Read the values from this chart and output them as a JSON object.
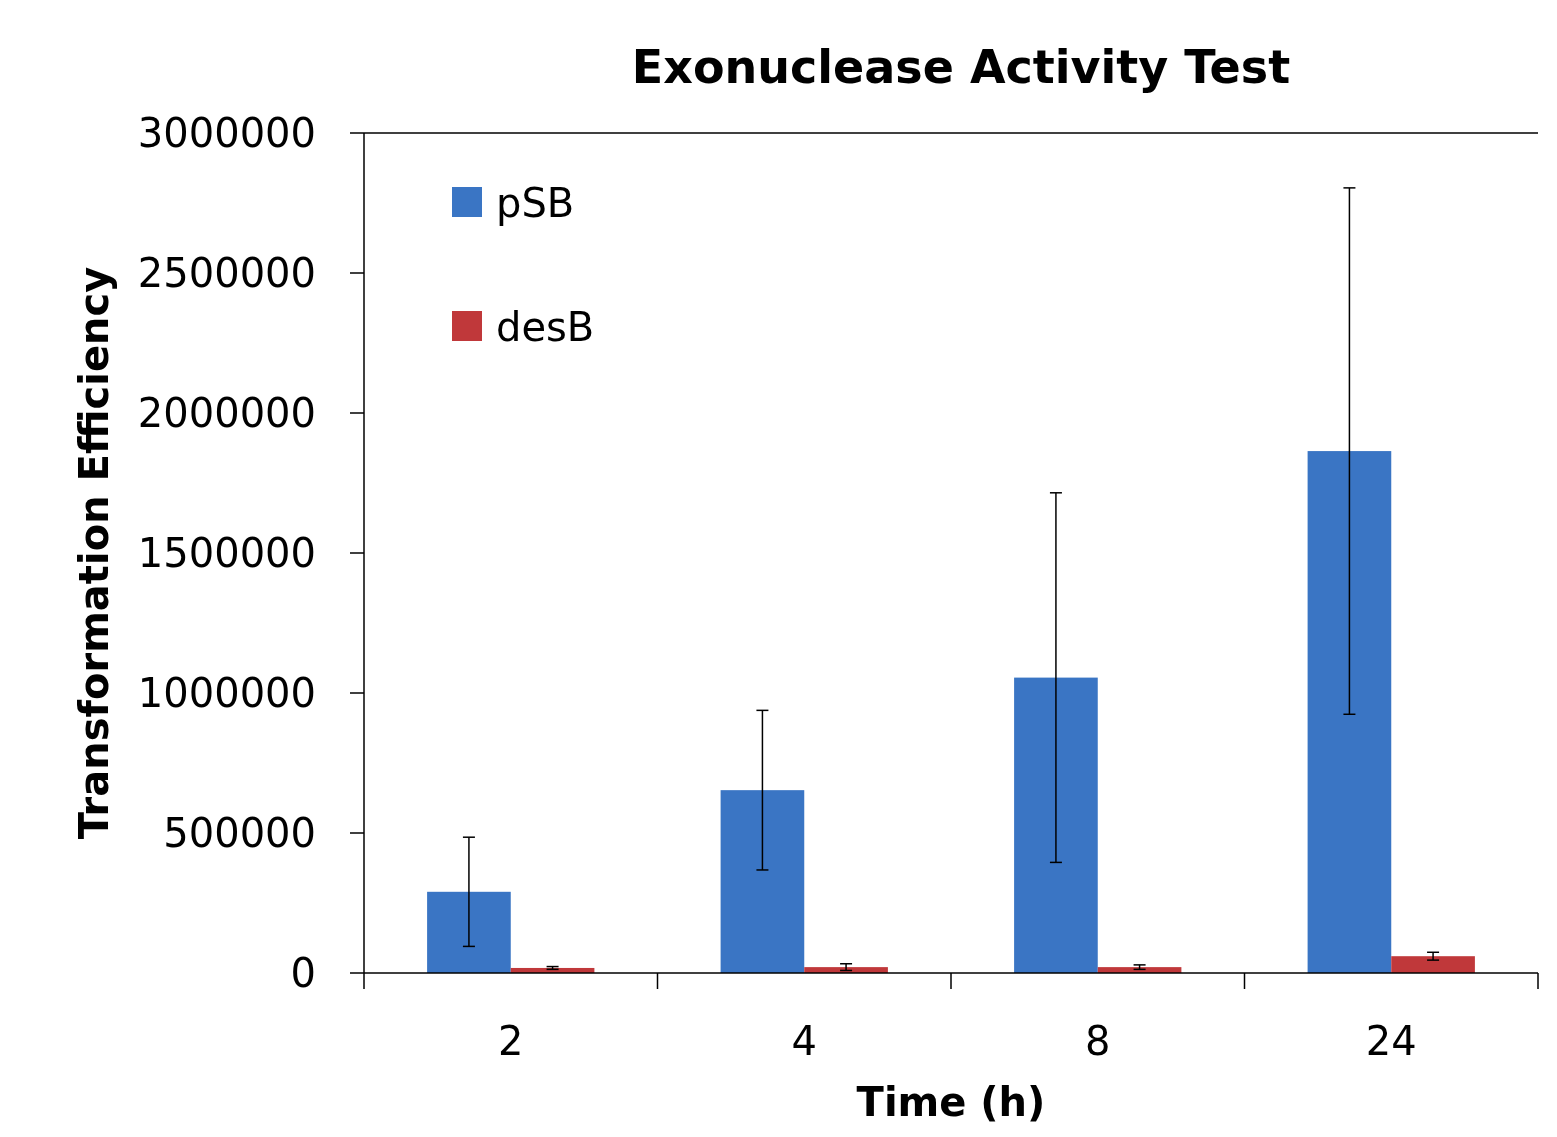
{
  "chart_data": {
    "type": "bar",
    "title": "Exonuclease Activity Test",
    "xlabel": "Time (h)",
    "ylabel": "Transformation Efficiency",
    "categories": [
      "2",
      "4",
      "8",
      "24"
    ],
    "series": [
      {
        "name": "pSB",
        "color": "#3a75c4",
        "values": [
          290000,
          653000,
          1055000,
          1864000
        ],
        "errors": [
          195000,
          285000,
          660000,
          940000
        ]
      },
      {
        "name": "desB",
        "color": "#c0383a",
        "values": [
          18000,
          21000,
          21000,
          60000
        ],
        "errors": [
          5000,
          12000,
          8000,
          14000
        ]
      }
    ],
    "ylim": [
      0,
      3000000
    ],
    "yticks": [
      0,
      500000,
      1000000,
      1500000,
      2000000,
      2500000,
      3000000
    ],
    "grid": false,
    "legend": "top left"
  }
}
